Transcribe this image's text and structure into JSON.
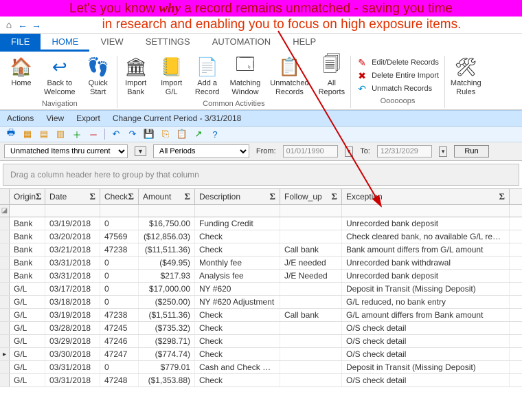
{
  "banner": {
    "line1_pre": "Let's you know ",
    "line1_em": "why",
    "line1_post": " a record remains unmatched - saving you time",
    "line2": "in research and enabling you to focus on high exposure items."
  },
  "tabs": {
    "file": "FILE",
    "home": "HOME",
    "view": "VIEW",
    "settings": "SETTINGS",
    "automation": "AUTOMATION",
    "help": "HELP"
  },
  "ribbon": {
    "navigation": {
      "caption": "Navigation",
      "home": "Home",
      "back": "Back to\nWelcome",
      "quick": "Quick\nStart"
    },
    "common": {
      "caption": "Common Activities",
      "impBank": "Import\nBank",
      "impGL": "Import\nG/L",
      "addRec": "Add a\nRecord",
      "matchWin": "Matching\nWindow",
      "unmatched": "Unmatched\nRecords",
      "allRep": "All\nReports"
    },
    "oops": {
      "caption": "Oooooops",
      "edit": "Edit/Delete Records",
      "delImp": "Delete Entire Import",
      "unmatch": "Unmatch Records"
    },
    "rules": {
      "caption": "",
      "label": "Matching\nRules"
    }
  },
  "tbar1": {
    "actions": "Actions",
    "view": "View",
    "export": "Export",
    "period": "Change Current Period - 3/31/2018"
  },
  "frow": {
    "scope": "Unmatched Items thru current",
    "periods": "All Periods",
    "fromLbl": "From:",
    "from": "01/01/1990",
    "toLbl": "To:",
    "to": "12/31/2029",
    "run": "Run"
  },
  "groupHint": "Drag a column header here to group by that column",
  "cols": {
    "origin": "Origin",
    "date": "Date",
    "check": "Check",
    "amount": "Amount",
    "desc": "Description",
    "fu": "Follow_up",
    "exc": "Exception"
  },
  "rows": [
    {
      "m": "",
      "o": "Bank",
      "d": "03/19/2018",
      "c": "0",
      "a": "$16,750.00",
      "de": "Funding Credit",
      "f": "",
      "e": "Unrecorded bank deposit"
    },
    {
      "m": "",
      "o": "Bank",
      "d": "03/20/2018",
      "c": "47569",
      "a": "($12,856.03)",
      "de": "Check",
      "f": "",
      "e": "Check cleared bank, no available G/L record…"
    },
    {
      "m": "",
      "o": "Bank",
      "d": "03/21/2018",
      "c": "47238",
      "a": "($11,511.36)",
      "de": "Check",
      "f": "Call bank",
      "e": "Bank amount differs from G/L amount"
    },
    {
      "m": "",
      "o": "Bank",
      "d": "03/31/2018",
      "c": "0",
      "a": "($49.95)",
      "de": "Monthly fee",
      "f": "J/E needed",
      "e": "Unrecorded bank withdrawal"
    },
    {
      "m": "",
      "o": "Bank",
      "d": "03/31/2018",
      "c": "0",
      "a": "$217.93",
      "de": "Analysis fee",
      "f": "J/E Needed",
      "e": "Unrecorded bank deposit"
    },
    {
      "m": "",
      "o": "G/L",
      "d": "03/17/2018",
      "c": "0",
      "a": "$17,000.00",
      "de": "NY #620",
      "f": "",
      "e": "Deposit in Transit (Missing Deposit)"
    },
    {
      "m": "",
      "o": "G/L",
      "d": "03/18/2018",
      "c": "0",
      "a": "($250.00)",
      "de": "NY #620 Adjustment",
      "f": "",
      "e": "G/L reduced, no bank entry"
    },
    {
      "m": "",
      "o": "G/L",
      "d": "03/19/2018",
      "c": "47238",
      "a": "($1,511.36)",
      "de": "Check",
      "f": "Call bank",
      "e": "G/L amount differs from Bank amount"
    },
    {
      "m": "",
      "o": "G/L",
      "d": "03/28/2018",
      "c": "47245",
      "a": "($735.32)",
      "de": "Check",
      "f": "",
      "e": "O/S check detail"
    },
    {
      "m": "",
      "o": "G/L",
      "d": "03/29/2018",
      "c": "47246",
      "a": "($298.71)",
      "de": "Check",
      "f": "",
      "e": "O/S check detail"
    },
    {
      "m": "▸",
      "o": "G/L",
      "d": "03/30/2018",
      "c": "47247",
      "a": "($774.74)",
      "de": "Check",
      "f": "",
      "e": "O/S check detail"
    },
    {
      "m": "",
      "o": "G/L",
      "d": "03/31/2018",
      "c": "0",
      "a": "$779.01",
      "de": "Cash and Check Depo…",
      "f": "",
      "e": "Deposit in Transit (Missing Deposit)"
    },
    {
      "m": "",
      "o": "G/L",
      "d": "03/31/2018",
      "c": "47248",
      "a": "($1,353.88)",
      "de": "Check",
      "f": "",
      "e": "O/S check detail"
    }
  ],
  "colors": {
    "banner_bg": "#ff00ff",
    "banner_text": "#b00000",
    "accent": "#0066cc",
    "tbar_bg": "#cde6ff",
    "arrow": "#cc0000"
  }
}
